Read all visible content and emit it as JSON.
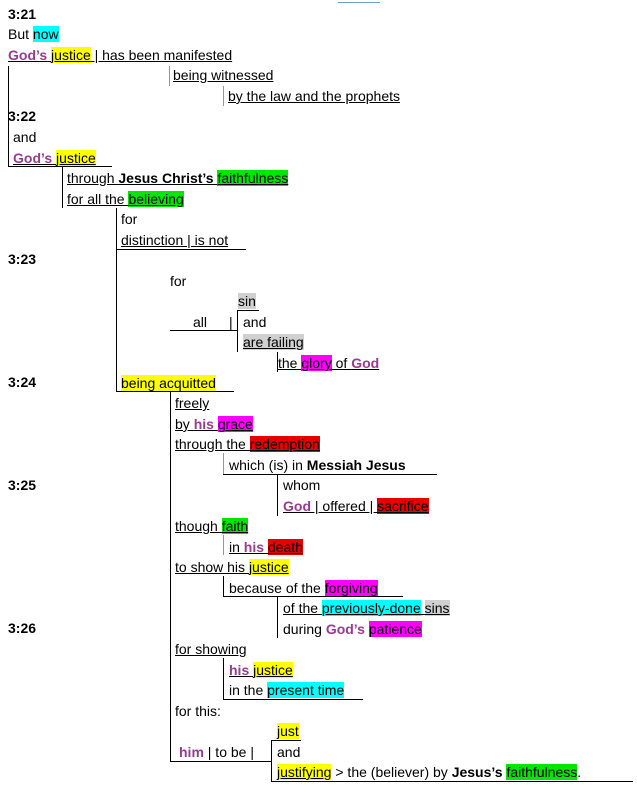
{
  "verses": {
    "v21": "3:21",
    "v22": "3:22",
    "v23": "3:23",
    "v24": "3:24",
    "v25": "3:25",
    "v26": "3:26"
  },
  "l1": {
    "but": "But ",
    "now": "now"
  },
  "l2": {
    "gods": "God’s",
    "justice": "justice",
    "rest": " | has been manifested"
  },
  "l3": "being witnessed",
  "l4": "by the law and the prophets",
  "l5": "and",
  "l6": {
    "gods": "God’s",
    "justice": "justice"
  },
  "l7": {
    "through": "through ",
    "jc": "Jesus Christ’s",
    "faith": "faithfulness"
  },
  "l8": {
    "pre": "for all the ",
    "believing": "believing"
  },
  "l9": "for",
  "l10": "distinction | is not",
  "l11": "for",
  "l12": {
    "sin": "sin"
  },
  "l13": {
    "all": "all",
    "bar": "|",
    "and": "and"
  },
  "l14": {
    "failing": "are failing"
  },
  "l15": {
    "the": "the ",
    "glory": "glory",
    "of": " of ",
    "god": "God"
  },
  "l16": "being acquitted",
  "l17": "freely",
  "l18": {
    "by": "by ",
    "his": "his",
    "grace": "grace"
  },
  "l19": {
    "through": "through the ",
    "redemption": "redemption"
  },
  "l20": {
    "which": "which (is) in ",
    "mj": "Messiah Jesus"
  },
  "l21": "whom",
  "l22": {
    "god": "God",
    "offered": " | offered | ",
    "sacrifice": "sacrifice"
  },
  "l23": {
    "though": "though ",
    "faith": "faith"
  },
  "l24": {
    "in": "in ",
    "his": "his",
    "death": "death"
  },
  "l25": {
    "to": "to show his ",
    "justice": "justice"
  },
  "l26": {
    "because": "because of the ",
    "forgiving": "forgiving"
  },
  "l27": {
    "of": "of the ",
    "prev": "previously-done",
    "sins": "sins"
  },
  "l28": {
    "during": "during ",
    "gods": "God’s",
    "patience": "patience"
  },
  "l29": "for showing",
  "l30": {
    "his": "his",
    "justice": "justice"
  },
  "l31": {
    "in": "in the ",
    "present": "present time"
  },
  "l32": "for this:",
  "l33": {
    "just": "just"
  },
  "l34": {
    "him": "him",
    "tobe": " | to be |",
    "and": "and"
  },
  "l35": {
    "justifying": "justifying",
    "rest": " > the (believer) by ",
    "jesus": "Jesus’s",
    "faith": "faithfulness",
    "dot": "."
  }
}
